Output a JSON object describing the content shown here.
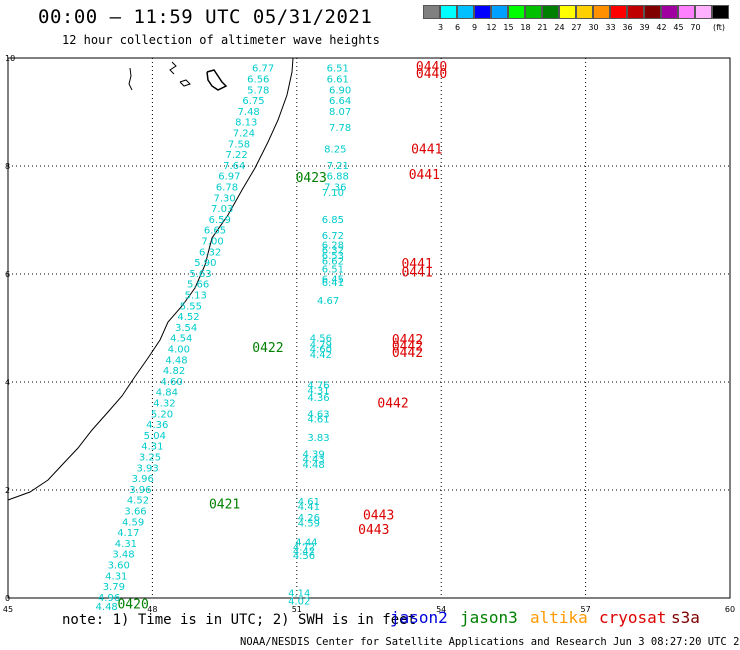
{
  "header": {
    "title": "00:00 – 11:59 UTC 05/31/2021",
    "subtitle": "12 hour collection of altimeter wave heights"
  },
  "legend": {
    "unit": "(ft)",
    "colors": [
      "#808080",
      "#00ffff",
      "#00c0ff",
      "#0000ff",
      "#00a0ff",
      "#00ff00",
      "#00c000",
      "#008000",
      "#ffff00",
      "#ffd000",
      "#ff9000",
      "#ff0000",
      "#c00000",
      "#800000",
      "#a000a0",
      "#ff80ff",
      "#ffb0ff",
      "#000000"
    ],
    "labels": [
      "3",
      "6",
      "9",
      "12",
      "15",
      "18",
      "21",
      "24",
      "27",
      "30",
      "33",
      "36",
      "39",
      "42",
      "45",
      "70"
    ]
  },
  "map": {
    "lon_min": 45,
    "lon_max": 60,
    "lat_min": 0,
    "lat_max": 10,
    "lon_ticks": [
      "45",
      "48",
      "51",
      "54",
      "57",
      "60"
    ],
    "lat_ticks": [
      "0",
      "2",
      "4",
      "6",
      "8",
      "10"
    ]
  },
  "chart_data": {
    "type": "scatter",
    "title": "00:00 – 11:59 UTC 05/31/2021",
    "units": "ft",
    "tracks": [
      {
        "satellite": "jason3",
        "color": "#00cccc",
        "points": [
          {
            "lon": 50.3,
            "lat": 9.82,
            "swh": "6.77"
          },
          {
            "lon": 50.2,
            "lat": 9.62,
            "swh": "6.56"
          },
          {
            "lon": 50.2,
            "lat": 9.42,
            "swh": "5.78"
          },
          {
            "lon": 50.1,
            "lat": 9.22,
            "swh": "6.75"
          },
          {
            "lon": 50.0,
            "lat": 9.02,
            "swh": "7.48"
          },
          {
            "lon": 49.95,
            "lat": 8.82,
            "swh": "8.13"
          },
          {
            "lon": 49.9,
            "lat": 8.62,
            "swh": "7.24"
          },
          {
            "lon": 49.8,
            "lat": 8.42,
            "swh": "7.58"
          },
          {
            "lon": 49.75,
            "lat": 8.22,
            "swh": "7.22"
          },
          {
            "lon": 49.7,
            "lat": 8.02,
            "swh": "7.64"
          },
          {
            "lon": 49.6,
            "lat": 7.82,
            "swh": "6.97"
          },
          {
            "lon": 49.55,
            "lat": 7.62,
            "swh": "6.78"
          },
          {
            "lon": 49.5,
            "lat": 7.42,
            "swh": "7.30"
          },
          {
            "lon": 49.45,
            "lat": 7.22,
            "swh": "7.03"
          },
          {
            "lon": 49.4,
            "lat": 7.02,
            "swh": "6.59"
          },
          {
            "lon": 49.3,
            "lat": 6.82,
            "swh": "6.65"
          },
          {
            "lon": 49.25,
            "lat": 6.62,
            "swh": "7.00"
          },
          {
            "lon": 49.2,
            "lat": 6.42,
            "swh": "6.32"
          },
          {
            "lon": 49.1,
            "lat": 6.22,
            "swh": "5.90"
          },
          {
            "lon": 49.0,
            "lat": 6.02,
            "swh": "5.63"
          },
          {
            "lon": 48.95,
            "lat": 5.82,
            "swh": "5.66"
          },
          {
            "lon": 48.9,
            "lat": 5.62,
            "swh": "5.13"
          },
          {
            "lon": 48.8,
            "lat": 5.42,
            "swh": "5.55"
          },
          {
            "lon": 48.75,
            "lat": 5.22,
            "swh": "4.52"
          },
          {
            "lon": 48.7,
            "lat": 5.02,
            "swh": "3.54"
          },
          {
            "lon": 48.6,
            "lat": 4.82,
            "swh": "4.54"
          },
          {
            "lon": 48.55,
            "lat": 4.62,
            "swh": "4.00"
          },
          {
            "lon": 48.5,
            "lat": 4.42,
            "swh": "4.48"
          },
          {
            "lon": 48.45,
            "lat": 4.22,
            "swh": "4.82"
          },
          {
            "lon": 48.4,
            "lat": 4.02,
            "swh": "4.60"
          },
          {
            "lon": 48.3,
            "lat": 3.82,
            "swh": "4.84"
          },
          {
            "lon": 48.25,
            "lat": 3.62,
            "swh": "4.32"
          },
          {
            "lon": 48.2,
            "lat": 3.42,
            "swh": "5.20"
          },
          {
            "lon": 48.1,
            "lat": 3.22,
            "swh": "4.36"
          },
          {
            "lon": 48.05,
            "lat": 3.02,
            "swh": "5.04"
          },
          {
            "lon": 48.0,
            "lat": 2.82,
            "swh": "4.31"
          },
          {
            "lon": 47.95,
            "lat": 2.62,
            "swh": "3.25"
          },
          {
            "lon": 47.9,
            "lat": 2.42,
            "swh": "3.93"
          },
          {
            "lon": 47.8,
            "lat": 2.22,
            "swh": "3.96"
          },
          {
            "lon": 47.75,
            "lat": 2.02,
            "swh": "3.96"
          },
          {
            "lon": 47.7,
            "lat": 1.82,
            "swh": "4.52"
          },
          {
            "lon": 47.65,
            "lat": 1.62,
            "swh": "3.66"
          },
          {
            "lon": 47.6,
            "lat": 1.42,
            "swh": "4.59"
          },
          {
            "lon": 47.5,
            "lat": 1.22,
            "swh": "4.17"
          },
          {
            "lon": 47.45,
            "lat": 1.02,
            "swh": "4.31"
          },
          {
            "lon": 47.4,
            "lat": 0.82,
            "swh": "3.48"
          },
          {
            "lon": 47.3,
            "lat": 0.62,
            "swh": "3.60"
          },
          {
            "lon": 47.25,
            "lat": 0.42,
            "swh": "4.31"
          },
          {
            "lon": 47.2,
            "lat": 0.22,
            "swh": "3.79"
          },
          {
            "lon": 47.1,
            "lat": 0.02,
            "swh": "4.96"
          },
          {
            "lon": 47.05,
            "lat": -0.15,
            "swh": "4.48"
          },
          {
            "lon": 51.85,
            "lat": 9.82,
            "swh": "6.51"
          },
          {
            "lon": 51.85,
            "lat": 9.62,
            "swh": "6.61"
          },
          {
            "lon": 51.9,
            "lat": 9.42,
            "swh": "6.90"
          },
          {
            "lon": 51.9,
            "lat": 9.22,
            "swh": "6.64"
          },
          {
            "lon": 51.9,
            "lat": 9.02,
            "swh": "8.07"
          },
          {
            "lon": 51.9,
            "lat": 8.72,
            "swh": "7.78"
          },
          {
            "lon": 51.8,
            "lat": 8.32,
            "swh": "8.25"
          },
          {
            "lon": 51.85,
            "lat": 8.02,
            "swh": "7.21"
          },
          {
            "lon": 51.85,
            "lat": 7.82,
            "swh": "6.88"
          },
          {
            "lon": 51.8,
            "lat": 7.62,
            "swh": "7.36"
          },
          {
            "lon": 51.75,
            "lat": 7.52,
            "swh": "7.10"
          },
          {
            "lon": 51.75,
            "lat": 7.02,
            "swh": "6.85"
          },
          {
            "lon": 51.75,
            "lat": 6.72,
            "swh": "6.72"
          },
          {
            "lon": 51.75,
            "lat": 6.55,
            "swh": "6.28"
          },
          {
            "lon": 51.75,
            "lat": 6.45,
            "swh": "6.32"
          },
          {
            "lon": 51.75,
            "lat": 6.35,
            "swh": "6.53"
          },
          {
            "lon": 51.75,
            "lat": 6.25,
            "swh": "6.62"
          },
          {
            "lon": 51.75,
            "lat": 6.1,
            "swh": "6.51"
          },
          {
            "lon": 51.75,
            "lat": 5.92,
            "swh": "6.45"
          },
          {
            "lon": 51.75,
            "lat": 5.85,
            "swh": "6.41"
          },
          {
            "lon": 51.65,
            "lat": 5.52,
            "swh": "4.67"
          },
          {
            "lon": 51.5,
            "lat": 4.82,
            "swh": "4.56"
          },
          {
            "lon": 51.5,
            "lat": 4.7,
            "swh": "4.79"
          },
          {
            "lon": 51.5,
            "lat": 4.62,
            "swh": "4.60"
          },
          {
            "lon": 51.5,
            "lat": 4.52,
            "swh": "4.42"
          },
          {
            "lon": 51.45,
            "lat": 3.95,
            "swh": "4.76"
          },
          {
            "lon": 51.45,
            "lat": 3.85,
            "swh": "4.31"
          },
          {
            "lon": 51.45,
            "lat": 3.72,
            "swh": "4.36"
          },
          {
            "lon": 51.45,
            "lat": 3.42,
            "swh": "4.63"
          },
          {
            "lon": 51.45,
            "lat": 3.32,
            "swh": "4.61"
          },
          {
            "lon": 51.45,
            "lat": 2.98,
            "swh": "3.83"
          },
          {
            "lon": 51.35,
            "lat": 2.68,
            "swh": "4.39"
          },
          {
            "lon": 51.35,
            "lat": 2.58,
            "swh": "4.43"
          },
          {
            "lon": 51.35,
            "lat": 2.48,
            "swh": "4.48"
          },
          {
            "lon": 51.25,
            "lat": 1.8,
            "swh": "4.61"
          },
          {
            "lon": 51.25,
            "lat": 1.7,
            "swh": "4.41"
          },
          {
            "lon": 51.25,
            "lat": 1.5,
            "swh": "4.26"
          },
          {
            "lon": 51.25,
            "lat": 1.4,
            "swh": "4.59"
          },
          {
            "lon": 51.2,
            "lat": 1.05,
            "swh": "4.44"
          },
          {
            "lon": 51.15,
            "lat": 0.95,
            "swh": "4.72"
          },
          {
            "lon": 51.15,
            "lat": 0.88,
            "swh": "4.42"
          },
          {
            "lon": 51.15,
            "lat": 0.8,
            "swh": "4.56"
          },
          {
            "lon": 51.05,
            "lat": 0.1,
            "swh": "4.14"
          },
          {
            "lon": 51.05,
            "lat": -0.05,
            "swh": "4.02"
          }
        ]
      }
    ],
    "pass_labels": [
      {
        "text": "0420",
        "color": "#008000",
        "lon": 47.6,
        "lat": -0.1
      },
      {
        "text": "0421",
        "color": "#008000",
        "lon": 49.5,
        "lat": 1.75
      },
      {
        "text": "0422",
        "color": "#008000",
        "lon": 50.4,
        "lat": 4.65
      },
      {
        "text": "0423",
        "color": "#008000",
        "lon": 51.3,
        "lat": 7.8
      },
      {
        "text": "0440",
        "color": "#dd0000",
        "lon": 53.8,
        "lat": 9.85
      },
      {
        "text": "0440",
        "color": "#dd0000",
        "lon": 53.8,
        "lat": 9.72
      },
      {
        "text": "0441",
        "color": "#dd0000",
        "lon": 53.7,
        "lat": 8.32
      },
      {
        "text": "0441",
        "color": "#dd0000",
        "lon": 53.65,
        "lat": 7.85
      },
      {
        "text": "0441",
        "color": "#dd0000",
        "lon": 53.5,
        "lat": 6.2
      },
      {
        "text": "0441",
        "color": "#dd0000",
        "lon": 53.5,
        "lat": 6.05
      },
      {
        "text": "0442",
        "color": "#dd0000",
        "lon": 53.3,
        "lat": 4.8
      },
      {
        "text": "0442",
        "color": "#dd0000",
        "lon": 53.3,
        "lat": 4.68
      },
      {
        "text": "0442",
        "color": "#dd0000",
        "lon": 53.3,
        "lat": 4.56
      },
      {
        "text": "0442",
        "color": "#dd0000",
        "lon": 53.0,
        "lat": 3.62
      },
      {
        "text": "0443",
        "color": "#dd0000",
        "lon": 52.7,
        "lat": 1.55
      },
      {
        "text": "0443",
        "color": "#dd0000",
        "lon": 52.6,
        "lat": 1.28
      }
    ]
  },
  "footer": {
    "note": "note: 1) Time is in UTC; 2) SWH is in feet",
    "missions": [
      {
        "name": "jason2",
        "color": "#0000dd"
      },
      {
        "name": "jason3",
        "color": "#008000"
      },
      {
        "name": "altika",
        "color": "#ff9900"
      },
      {
        "name": "cryosat",
        "color": "#dd0000"
      },
      {
        "name": "s3a",
        "color": "#800000"
      }
    ],
    "credit": "NOAA/NESDIS Center for Satellite Applications and Research    Jun  3 08:27:20 UTC 2021"
  }
}
